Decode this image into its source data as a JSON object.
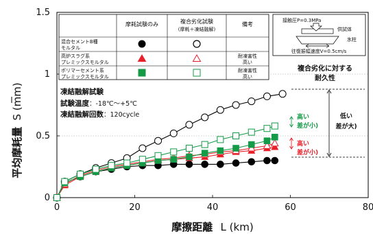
{
  "chart_data": {
    "type": "line",
    "xlabel": "摩擦距離",
    "xunit": "L (km)",
    "ylabel": "平均摩耗量",
    "yunit": "S (mm)",
    "xlim": [
      0,
      80
    ],
    "ylim": [
      0,
      1.5
    ],
    "xticks": [
      "0",
      "20",
      "40",
      "60",
      "80"
    ],
    "yticks": [
      "0",
      "0.5",
      "1",
      "1.5"
    ],
    "grid": "horizontal-dotted",
    "series": [
      {
        "key": "cement_abr",
        "name": "混合セメントB種モルタル / 摩耗試験のみ",
        "color": "#000000",
        "marker": "circle",
        "filled": true,
        "x": [
          0,
          2,
          6,
          10,
          14,
          18,
          22,
          26,
          30,
          34,
          38,
          42,
          46,
          50,
          54,
          56
        ],
        "y": [
          0,
          0.12,
          0.17,
          0.21,
          0.23,
          0.25,
          0.26,
          0.26,
          0.27,
          0.27,
          0.27,
          0.27,
          0.28,
          0.29,
          0.3,
          0.3
        ]
      },
      {
        "key": "cement_comb",
        "name": "混合セメントB種モルタル / 複合劣化試験",
        "color": "#000000",
        "marker": "circle",
        "filled": false,
        "x": [
          0,
          2,
          6,
          10,
          14,
          18,
          22,
          26,
          30,
          34,
          38,
          42,
          46,
          50,
          54,
          58
        ],
        "y": [
          0,
          0.13,
          0.19,
          0.24,
          0.28,
          0.32,
          0.4,
          0.46,
          0.52,
          0.59,
          0.65,
          0.71,
          0.75,
          0.78,
          0.82,
          0.84
        ]
      },
      {
        "key": "slag_abr",
        "name": "高炉スラグ系プレミックスモルタル / 摩耗試験のみ",
        "color": "#e8202a",
        "marker": "triangle",
        "filled": true,
        "x": [
          0,
          2,
          6,
          10,
          14,
          18,
          22,
          26,
          30,
          34,
          38,
          42,
          46,
          50,
          54,
          56
        ],
        "y": [
          0,
          0.1,
          0.17,
          0.21,
          0.24,
          0.26,
          0.28,
          0.3,
          0.31,
          0.32,
          0.33,
          0.35,
          0.37,
          0.38,
          0.4,
          0.41
        ]
      },
      {
        "key": "slag_comb",
        "name": "高炉スラグ系プレミックスモルタル / 複合劣化試験",
        "color": "#e8202a",
        "marker": "triangle",
        "filled": false,
        "x": [
          0,
          2,
          6,
          10,
          14,
          18,
          22,
          26,
          30,
          34,
          38,
          42,
          46,
          50,
          54,
          56
        ],
        "y": [
          0,
          0.11,
          0.18,
          0.22,
          0.25,
          0.27,
          0.29,
          0.31,
          0.32,
          0.34,
          0.35,
          0.37,
          0.38,
          0.4,
          0.42,
          0.44
        ]
      },
      {
        "key": "polymer_abr",
        "name": "ポリマーセメント系プレミックスモルタル / 摩耗試験のみ",
        "color": "#159a48",
        "marker": "square",
        "filled": true,
        "x": [
          0,
          2,
          6,
          10,
          14,
          18,
          22,
          26,
          30,
          34,
          38,
          42,
          46,
          50,
          54,
          56
        ],
        "y": [
          0,
          0.12,
          0.17,
          0.21,
          0.24,
          0.26,
          0.28,
          0.3,
          0.31,
          0.33,
          0.36,
          0.38,
          0.4,
          0.43,
          0.46,
          0.49
        ]
      },
      {
        "key": "polymer_comb",
        "name": "ポリマーセメント系プレミックスモルタル / 複合劣化試験",
        "color": "#159a48",
        "marker": "square",
        "filled": false,
        "x": [
          0,
          2,
          6,
          10,
          14,
          18,
          22,
          26,
          30,
          34,
          38,
          42,
          46,
          50,
          54,
          56
        ],
        "y": [
          0,
          0.13,
          0.19,
          0.23,
          0.26,
          0.28,
          0.31,
          0.34,
          0.37,
          0.4,
          0.43,
          0.47,
          0.5,
          0.53,
          0.56,
          0.58
        ]
      }
    ]
  },
  "legend_table": {
    "headers": [
      "",
      "摩耗試験のみ",
      "複合劣化試験",
      "(摩耗＋凍結融解)",
      "備考"
    ],
    "rows": [
      {
        "name1": "混合セメントB種",
        "name2": "モルタル",
        "remark1": "",
        "remark2": ""
      },
      {
        "name1": "高炉スラグ系",
        "name2": "プレミックスモルタル",
        "remark1": "耐凍害性",
        "remark2": "高い"
      },
      {
        "name1": "ポリマーセメント系",
        "name2": "プレミックスモルタル",
        "remark1": "耐凍害性",
        "remark2": "高い"
      }
    ]
  },
  "apparatus": {
    "pressure": "接触圧P=0.3MPa",
    "specimen": "供試体",
    "ice": "氷柱",
    "speed": "往復振幅速度V=0.5cm/s"
  },
  "conditions": {
    "title": "凍結融解試験",
    "temp_label": "試験温度",
    "temp_value": "：-18℃～+5℃",
    "cycles_label": "凍結融解回数",
    "cycles_value": "：120cycle"
  },
  "durability": {
    "title1": "複合劣化に対する",
    "title2": "耐久性",
    "high": "高い",
    "high_small": "差が小)",
    "low": "低い",
    "low_big": "差が大)"
  }
}
